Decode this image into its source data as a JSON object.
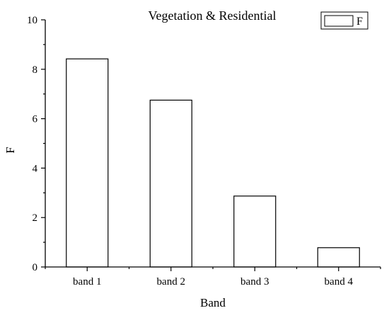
{
  "chart_data": {
    "type": "bar",
    "title": "Vegetation & Residential",
    "xlabel": "Band",
    "ylabel": "F",
    "categories": [
      "band 1",
      "band 2",
      "band 3",
      "band 4"
    ],
    "series": [
      {
        "name": "F",
        "values": [
          8.42,
          6.75,
          2.87,
          0.78
        ]
      }
    ],
    "ylim": [
      0,
      10
    ],
    "yticks": [
      0,
      2,
      4,
      6,
      8,
      10
    ],
    "grid": false,
    "legend": "top-right",
    "bar_fill": "#ffffff",
    "bar_stroke": "#000000"
  }
}
